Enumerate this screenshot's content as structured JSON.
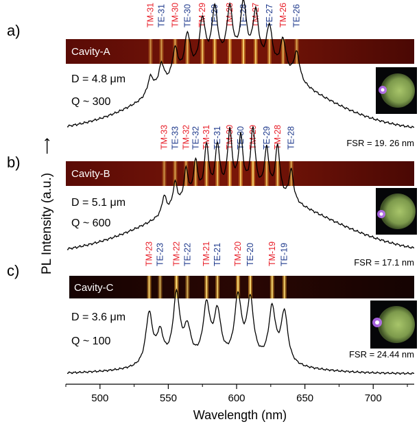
{
  "chart_data": [
    {
      "type": "line",
      "panel_label": "a)",
      "strip_label": "Cavity-A",
      "diameter_text": "D = 4.8 μm",
      "q_text": "Q ~ 300",
      "fsr_text": "FSR = 19. 26 nm",
      "modes": [
        {
          "label": "TM-31",
          "wavelength": 537,
          "pol": "TM",
          "strength": 0.15
        },
        {
          "label": "TE-31",
          "wavelength": 545,
          "pol": "TE",
          "strength": 0.2
        },
        {
          "label": "TM-30",
          "wavelength": 555,
          "pol": "TM",
          "strength": 0.26
        },
        {
          "label": "TE-30",
          "wavelength": 564,
          "pol": "TE",
          "strength": 0.33
        },
        {
          "label": "TM-29",
          "wavelength": 575,
          "pol": "TM",
          "strength": 0.4
        },
        {
          "label": "TE-29",
          "wavelength": 584,
          "pol": "TE",
          "strength": 0.46
        },
        {
          "label": "TM-28",
          "wavelength": 595,
          "pol": "TM",
          "strength": 0.44
        },
        {
          "label": "TE-28",
          "wavelength": 605,
          "pol": "TE",
          "strength": 0.48
        },
        {
          "label": "TM-27",
          "wavelength": 614,
          "pol": "TM",
          "strength": 0.42
        },
        {
          "label": "TE-27",
          "wavelength": 624,
          "pol": "TE",
          "strength": 0.34
        },
        {
          "label": "TM-26",
          "wavelength": 634,
          "pol": "TM",
          "strength": 0.28
        },
        {
          "label": "TE-26",
          "wavelength": 644,
          "pol": "TE",
          "strength": 0.24
        }
      ]
    },
    {
      "type": "line",
      "panel_label": "b)",
      "strip_label": "Cavity-B",
      "diameter_text": "D = 5.1 μm",
      "q_text": "Q ~ 600",
      "fsr_text": "FSR = 17.1 nm",
      "modes": [
        {
          "label": "TM-33",
          "wavelength": 547,
          "pol": "TM",
          "strength": 0.15
        },
        {
          "label": "TE-33",
          "wavelength": 555,
          "pol": "TE",
          "strength": 0.21
        },
        {
          "label": "TM-32",
          "wavelength": 563,
          "pol": "TM",
          "strength": 0.27
        },
        {
          "label": "TE-32",
          "wavelength": 570,
          "pol": "TE",
          "strength": 0.3
        },
        {
          "label": "TM-31",
          "wavelength": 578,
          "pol": "TM",
          "strength": 0.4
        },
        {
          "label": "TE-31",
          "wavelength": 586,
          "pol": "TE",
          "strength": 0.38
        },
        {
          "label": "TM-30",
          "wavelength": 595,
          "pol": "TM",
          "strength": 0.48
        },
        {
          "label": "TE-30",
          "wavelength": 603,
          "pol": "TE",
          "strength": 0.42
        },
        {
          "label": "TM-29",
          "wavelength": 612,
          "pol": "TM",
          "strength": 0.5
        },
        {
          "label": "TE-29",
          "wavelength": 622,
          "pol": "TE",
          "strength": 0.35
        },
        {
          "label": "TM-28",
          "wavelength": 630,
          "pol": "TM",
          "strength": 0.4
        },
        {
          "label": "TE-28",
          "wavelength": 640,
          "pol": "TE",
          "strength": 0.25
        }
      ]
    },
    {
      "type": "line",
      "panel_label": "c)",
      "strip_label": "Cavity-C",
      "diameter_text": "D = 3.6 μm",
      "q_text": "Q ~ 100",
      "fsr_text": "FSR = 24.44 nm",
      "modes": [
        {
          "label": "TM-23",
          "wavelength": 536,
          "pol": "TM",
          "strength": 0.5
        },
        {
          "label": "TE-23",
          "wavelength": 544,
          "pol": "TE",
          "strength": 0.28
        },
        {
          "label": "TM-22",
          "wavelength": 556,
          "pol": "TM",
          "strength": 0.65
        },
        {
          "label": "TE-22",
          "wavelength": 564,
          "pol": "TE",
          "strength": 0.3
        },
        {
          "label": "TM-21",
          "wavelength": 578,
          "pol": "TM",
          "strength": 0.52
        },
        {
          "label": "TE-21",
          "wavelength": 586,
          "pol": "TE",
          "strength": 0.45
        },
        {
          "label": "TM-20",
          "wavelength": 601,
          "pol": "TM",
          "strength": 0.6
        },
        {
          "label": "TE-20",
          "wavelength": 610,
          "pol": "TE",
          "strength": 0.58
        },
        {
          "label": "TM-19",
          "wavelength": 626,
          "pol": "TM",
          "strength": 0.52
        },
        {
          "label": "TE-19",
          "wavelength": 635,
          "pol": "TE",
          "strength": 0.5
        }
      ]
    }
  ],
  "axes": {
    "xlabel": "Wavelength (nm)",
    "ylabel": "PL Intensity (a.u.)",
    "ylabel_arrow": "⟶",
    "xlim": [
      475,
      730
    ],
    "xticks": [
      "500",
      "550",
      "600",
      "650",
      "700"
    ]
  },
  "colors": {
    "tm": "#e8202a",
    "te": "#1f3a8c",
    "line": "#000000"
  }
}
